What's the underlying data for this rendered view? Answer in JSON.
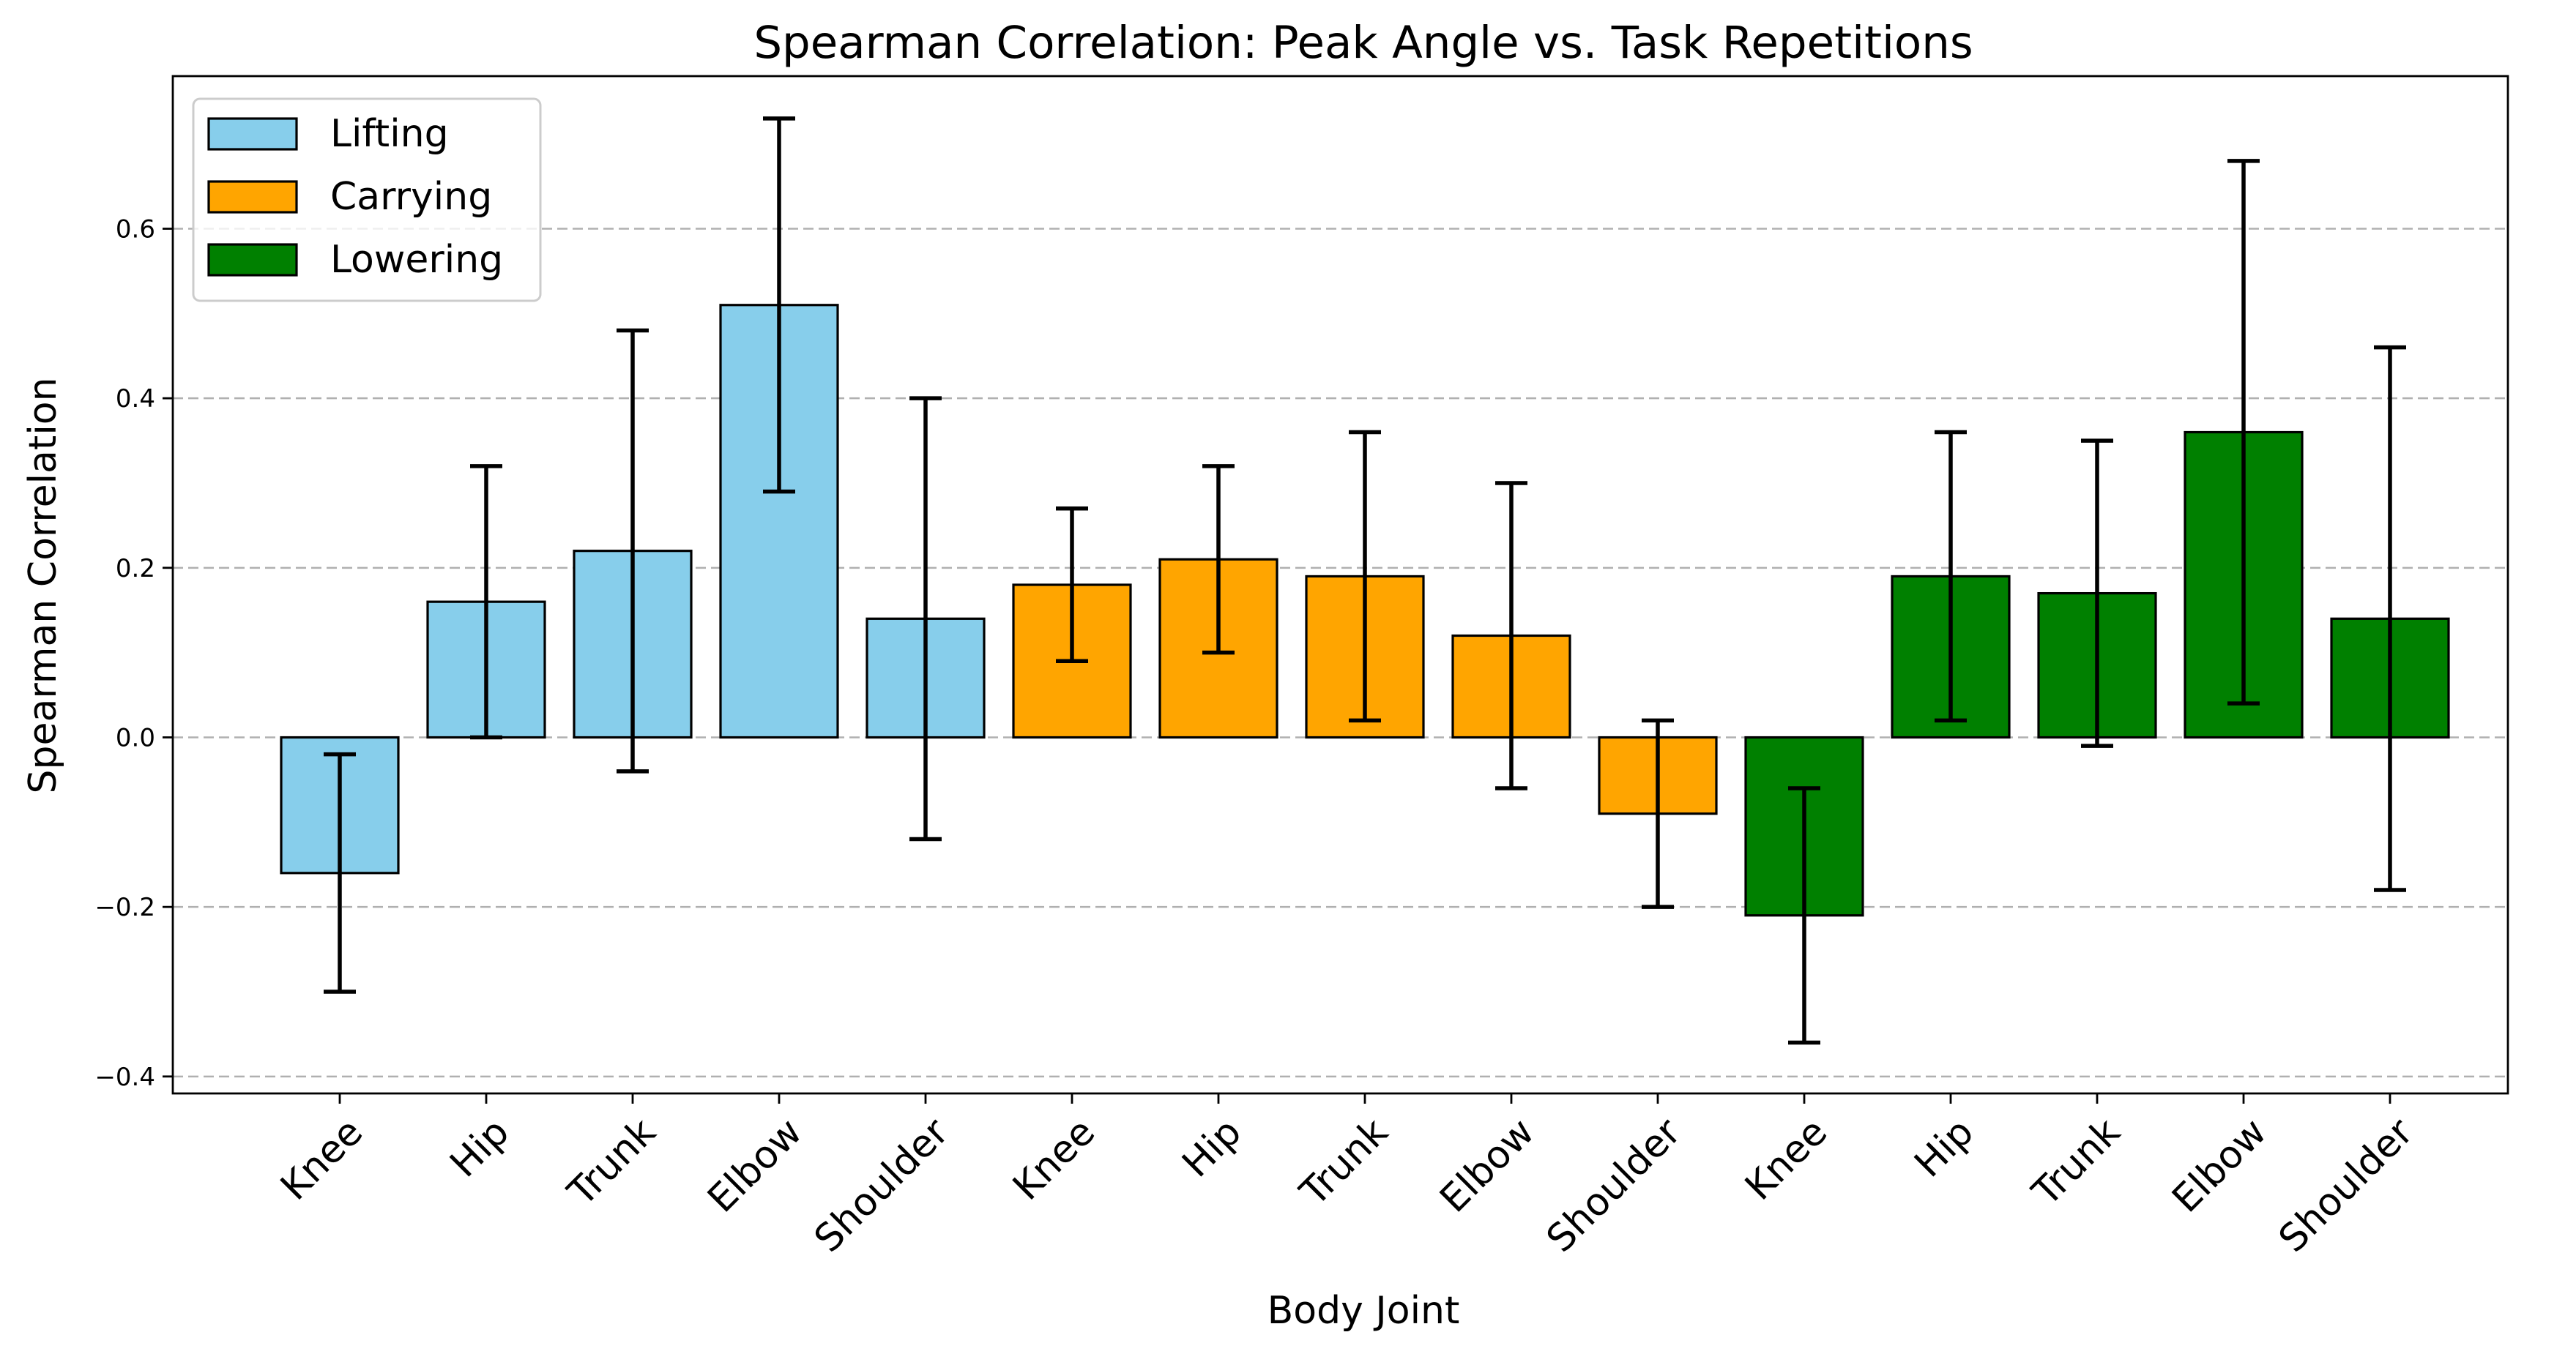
{
  "chart_data": {
    "type": "bar",
    "title": "Spearman Correlation: Peak Angle vs. Task Repetitions",
    "xlabel": "Body Joint",
    "ylabel": "Spearman Correlation",
    "ylim": [
      -0.42,
      0.78
    ],
    "yticks": [
      -0.4,
      -0.2,
      0.0,
      0.2,
      0.4,
      0.6
    ],
    "ytick_labels": [
      "−0.4",
      "−0.2",
      "0.0",
      "0.2",
      "0.4",
      "0.6"
    ],
    "grid": "y-dashed",
    "legend_position": "top-left",
    "error_bars": true,
    "series": [
      {
        "name": "Lifting",
        "color": "#87ceeb",
        "categories": [
          "Knee",
          "Hip",
          "Trunk",
          "Elbow",
          "Shoulder"
        ],
        "values": [
          -0.16,
          0.16,
          0.22,
          0.51,
          0.14
        ],
        "err_low": [
          -0.3,
          0.0,
          -0.04,
          0.29,
          -0.12
        ],
        "err_high": [
          -0.02,
          0.32,
          0.48,
          0.73,
          0.4
        ]
      },
      {
        "name": "Carrying",
        "color": "#ffa500",
        "categories": [
          "Knee",
          "Hip",
          "Trunk",
          "Elbow",
          "Shoulder"
        ],
        "values": [
          0.18,
          0.21,
          0.19,
          0.12,
          -0.09
        ],
        "err_low": [
          0.09,
          0.1,
          0.02,
          -0.06,
          -0.2
        ],
        "err_high": [
          0.27,
          0.32,
          0.36,
          0.3,
          0.02
        ]
      },
      {
        "name": "Lowering",
        "color": "#008000",
        "categories": [
          "Knee",
          "Hip",
          "Trunk",
          "Elbow",
          "Shoulder"
        ],
        "values": [
          -0.21,
          0.19,
          0.17,
          0.36,
          0.14
        ],
        "err_low": [
          -0.36,
          0.02,
          -0.01,
          0.04,
          -0.18
        ],
        "err_high": [
          -0.06,
          0.36,
          0.35,
          0.68,
          0.46
        ]
      }
    ]
  }
}
